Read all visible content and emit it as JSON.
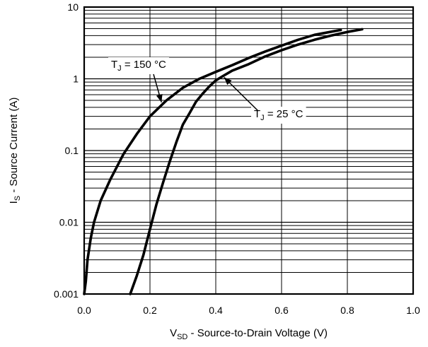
{
  "chart_data": {
    "type": "line",
    "x_scale": "linear",
    "y_scale": "log",
    "xlim": [
      0.0,
      1.0
    ],
    "ylim": [
      0.001,
      10
    ],
    "x_ticks": [
      "0.0",
      "0.2",
      "0.4",
      "0.6",
      "0.8",
      "1.0"
    ],
    "y_ticks": [
      "0.001",
      "0.01",
      "0.1",
      "1",
      "10"
    ],
    "xlabel": {
      "main": "V",
      "sub": "SD",
      "rest": " - Source-to-Drain Voltage (V)"
    },
    "ylabel": {
      "main": "I",
      "sub": "S",
      "rest": " - Source Current (A)"
    },
    "grid": true,
    "series": [
      {
        "name": "T_J = 150 °C",
        "label": {
          "main": "T",
          "sub": "J",
          "rest": " = 150 °C"
        },
        "x": [
          0.0,
          0.005,
          0.01,
          0.02,
          0.03,
          0.05,
          0.08,
          0.12,
          0.16,
          0.2,
          0.25,
          0.3,
          0.35,
          0.4,
          0.45,
          0.5,
          0.55,
          0.6,
          0.65,
          0.7,
          0.78
        ],
        "y": [
          0.001,
          0.0015,
          0.003,
          0.006,
          0.01,
          0.02,
          0.04,
          0.09,
          0.17,
          0.3,
          0.5,
          0.75,
          1.0,
          1.25,
          1.55,
          1.95,
          2.4,
          2.9,
          3.5,
          4.1,
          4.8
        ]
      },
      {
        "name": "T_J = 25 °C",
        "label": {
          "main": "T",
          "sub": "J",
          "rest": " = 25 °C"
        },
        "x": [
          0.14,
          0.16,
          0.18,
          0.2,
          0.22,
          0.24,
          0.26,
          0.28,
          0.3,
          0.32,
          0.34,
          0.36,
          0.38,
          0.4,
          0.42,
          0.45,
          0.5,
          0.55,
          0.6,
          0.65,
          0.7,
          0.75,
          0.8,
          0.845
        ],
        "y": [
          0.001,
          0.0018,
          0.0035,
          0.008,
          0.018,
          0.036,
          0.07,
          0.13,
          0.23,
          0.33,
          0.48,
          0.62,
          0.78,
          0.95,
          1.08,
          1.3,
          1.6,
          2.05,
          2.5,
          3.0,
          3.5,
          4.0,
          4.5,
          4.9
        ]
      }
    ]
  }
}
